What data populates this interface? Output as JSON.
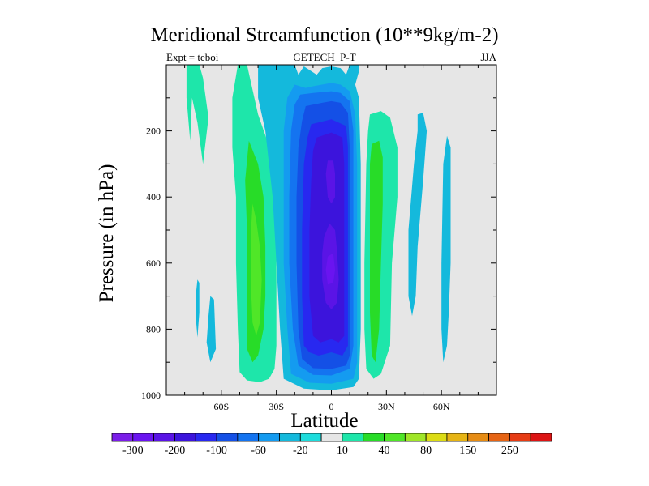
{
  "chart_data": {
    "type": "contour",
    "title": "Meridional Streamfunction (10**9kg/m-2)",
    "subtitle_left": "Expt = teboi",
    "subtitle_center": "GETECH_P-T",
    "subtitle_right": "JJA",
    "xlabel": "Latitude",
    "ylabel": "Pressure (in hPa)",
    "xlim": [
      -90,
      90
    ],
    "ylim": [
      1000,
      0
    ],
    "x_ticks": [
      {
        "value": -60,
        "label": "60S"
      },
      {
        "value": -30,
        "label": "30S"
      },
      {
        "value": 0,
        "label": "0"
      },
      {
        "value": 30,
        "label": "30N"
      },
      {
        "value": 60,
        "label": "60N"
      }
    ],
    "y_ticks": [
      {
        "value": 200,
        "label": "200"
      },
      {
        "value": 400,
        "label": "400"
      },
      {
        "value": 600,
        "label": "600"
      },
      {
        "value": 800,
        "label": "800"
      },
      {
        "value": 1000,
        "label": "1000"
      }
    ],
    "background_fill": "#e6e6e6",
    "colorbar": {
      "colors": [
        "#7a1ee8",
        "#6a14f0",
        "#5a14e6",
        "#3c14dc",
        "#2828f0",
        "#1450e6",
        "#1474f0",
        "#149bf0",
        "#14b9dc",
        "#1edcdc",
        "#e6e6e6",
        "#1ee6aa",
        "#28dc28",
        "#50e628",
        "#a0e628",
        "#dcdc14",
        "#e6b414",
        "#e68c14",
        "#e66414",
        "#e63c14",
        "#dc1414"
      ],
      "labels": [
        {
          "boundary": 1,
          "text": "-300"
        },
        {
          "boundary": 3,
          "text": "-200"
        },
        {
          "boundary": 5,
          "text": "-100"
        },
        {
          "boundary": 7,
          "text": "-60"
        },
        {
          "boundary": 9,
          "text": "-20"
        },
        {
          "boundary": 11,
          "text": "10"
        },
        {
          "boundary": 13,
          "text": "40"
        },
        {
          "boundary": 15,
          "text": "80"
        },
        {
          "boundary": 17,
          "text": "150"
        },
        {
          "boundary": 19,
          "text": "250"
        }
      ]
    },
    "regions": [
      {
        "name": "sh-outer-cell",
        "color": "#1ee6aa",
        "pts": [
          [
            -79,
            0
          ],
          [
            -72,
            0
          ],
          [
            -70,
            40
          ],
          [
            -67,
            160
          ],
          [
            -70,
            300
          ],
          [
            -73,
            175
          ],
          [
            -76,
            100
          ],
          [
            -77,
            230
          ],
          [
            -79,
            100
          ]
        ]
      },
      {
        "name": "sh-ferrel-cell",
        "color": "#1ee6aa",
        "pts": [
          [
            -51,
            0
          ],
          [
            -46,
            0
          ],
          [
            -44,
            50
          ],
          [
            -40,
            150
          ],
          [
            -35,
            230
          ],
          [
            -31,
            380
          ],
          [
            -30,
            520
          ],
          [
            -30,
            700
          ],
          [
            -30,
            850
          ],
          [
            -31,
            920
          ],
          [
            -34,
            950
          ],
          [
            -39,
            960
          ],
          [
            -46,
            955
          ],
          [
            -50,
            930
          ],
          [
            -51,
            800
          ],
          [
            -52,
            600
          ],
          [
            -52,
            400
          ],
          [
            -54,
            250
          ],
          [
            -54,
            100
          ]
        ]
      },
      {
        "name": "sh-ferrel-inner",
        "color": "#28dc28",
        "pts": [
          [
            -45,
            230
          ],
          [
            -40,
            300
          ],
          [
            -37,
            400
          ],
          [
            -36,
            550
          ],
          [
            -36,
            700
          ],
          [
            -37,
            800
          ],
          [
            -40,
            880
          ],
          [
            -43,
            900
          ],
          [
            -46,
            860
          ],
          [
            -46,
            700
          ],
          [
            -46,
            500
          ],
          [
            -47,
            350
          ]
        ]
      },
      {
        "name": "sh-ferrel-core",
        "color": "#50e628",
        "pts": [
          [
            -43,
            420
          ],
          [
            -41,
            470
          ],
          [
            -39,
            550
          ],
          [
            -38,
            650
          ],
          [
            -39,
            780
          ],
          [
            -41,
            820
          ],
          [
            -43,
            780
          ],
          [
            -44,
            650
          ],
          [
            -44,
            520
          ]
        ]
      },
      {
        "name": "sh-patch-small",
        "color": "#14b9dc",
        "pts": [
          [
            -73,
            650
          ],
          [
            -72,
            660
          ],
          [
            -72,
            750
          ],
          [
            -73,
            825
          ],
          [
            -74,
            760
          ],
          [
            -74,
            700
          ]
        ]
      },
      {
        "name": "sh-patch-mid",
        "color": "#14b9dc",
        "pts": [
          [
            -66,
            700
          ],
          [
            -64,
            710
          ],
          [
            -63,
            860
          ],
          [
            -66,
            900
          ],
          [
            -68,
            840
          ],
          [
            -67,
            760
          ]
        ]
      },
      {
        "name": "hadley-cell-l1",
        "color": "#14b9dc",
        "pts": [
          [
            -40,
            0
          ],
          [
            -20,
            0
          ],
          [
            -18,
            30
          ],
          [
            -15,
            5
          ],
          [
            -8,
            30
          ],
          [
            -5,
            10
          ],
          [
            0,
            5
          ],
          [
            5,
            10
          ],
          [
            8,
            30
          ],
          [
            10,
            0
          ],
          [
            15,
            0
          ],
          [
            15,
            20
          ],
          [
            13,
            60
          ],
          [
            15,
            100
          ],
          [
            16,
            300
          ],
          [
            16,
            500
          ],
          [
            16,
            800
          ],
          [
            15,
            950
          ],
          [
            12,
            975
          ],
          [
            0,
            985
          ],
          [
            -15,
            980
          ],
          [
            -26,
            950
          ],
          [
            -28,
            800
          ],
          [
            -30,
            600
          ],
          [
            -32,
            400
          ],
          [
            -36,
            200
          ],
          [
            -40,
            100
          ]
        ]
      },
      {
        "name": "hadley-cell-l2",
        "color": "#149bf0",
        "pts": [
          [
            -20,
            60
          ],
          [
            -14,
            70
          ],
          [
            -10,
            65
          ],
          [
            0,
            55
          ],
          [
            5,
            60
          ],
          [
            10,
            80
          ],
          [
            13,
            150
          ],
          [
            14,
            300
          ],
          [
            14,
            600
          ],
          [
            14,
            900
          ],
          [
            12,
            950
          ],
          [
            0,
            965
          ],
          [
            -12,
            962
          ],
          [
            -22,
            935
          ],
          [
            -24,
            800
          ],
          [
            -26,
            600
          ],
          [
            -26,
            400
          ],
          [
            -26,
            200
          ],
          [
            -24,
            100
          ]
        ]
      },
      {
        "name": "hadley-cell-l3",
        "color": "#1474f0",
        "pts": [
          [
            -17,
            90
          ],
          [
            -10,
            85
          ],
          [
            0,
            80
          ],
          [
            5,
            85
          ],
          [
            10,
            110
          ],
          [
            12,
            200
          ],
          [
            12,
            500
          ],
          [
            12,
            850
          ],
          [
            10,
            920
          ],
          [
            0,
            940
          ],
          [
            -10,
            938
          ],
          [
            -18,
            910
          ],
          [
            -21,
            800
          ],
          [
            -23,
            600
          ],
          [
            -23,
            400
          ],
          [
            -22,
            200
          ],
          [
            -20,
            120
          ]
        ]
      },
      {
        "name": "hadley-cell-l4",
        "color": "#1450e6",
        "pts": [
          [
            -14,
            125
          ],
          [
            -5,
            115
          ],
          [
            0,
            110
          ],
          [
            5,
            115
          ],
          [
            9,
            145
          ],
          [
            10,
            250
          ],
          [
            10,
            600
          ],
          [
            10,
            880
          ],
          [
            8,
            910
          ],
          [
            0,
            920
          ],
          [
            -10,
            918
          ],
          [
            -16,
            890
          ],
          [
            -18,
            800
          ],
          [
            -19,
            600
          ],
          [
            -19,
            400
          ],
          [
            -18,
            250
          ],
          [
            -16,
            170
          ]
        ]
      },
      {
        "name": "hadley-cell-l5",
        "color": "#2828f0",
        "pts": [
          [
            -11,
            180
          ],
          [
            0,
            165
          ],
          [
            8,
            185
          ],
          [
            9,
            250
          ],
          [
            9,
            600
          ],
          [
            9,
            850
          ],
          [
            6,
            880
          ],
          [
            0,
            870
          ],
          [
            -7,
            880
          ],
          [
            -12,
            870
          ],
          [
            -15,
            850
          ],
          [
            -16,
            700
          ],
          [
            -16,
            500
          ],
          [
            -15,
            300
          ],
          [
            -13,
            220
          ]
        ]
      },
      {
        "name": "hadley-cell-l6",
        "color": "#3c14dc",
        "pts": [
          [
            -8,
            220
          ],
          [
            0,
            205
          ],
          [
            6,
            220
          ],
          [
            7,
            300
          ],
          [
            7,
            600
          ],
          [
            7,
            820
          ],
          [
            4,
            840
          ],
          [
            0,
            830
          ],
          [
            -6,
            840
          ],
          [
            -10,
            820
          ],
          [
            -12,
            700
          ],
          [
            -12,
            500
          ],
          [
            -11,
            350
          ],
          [
            -10,
            260
          ]
        ]
      },
      {
        "name": "hadley-core-upper",
        "color": "#5a14e6",
        "pts": [
          [
            -2,
            290
          ],
          [
            1,
            290
          ],
          [
            2,
            330
          ],
          [
            2,
            400
          ],
          [
            0,
            420
          ],
          [
            -2,
            400
          ],
          [
            -3,
            330
          ]
        ]
      },
      {
        "name": "hadley-core-lower",
        "color": "#5a14e6",
        "pts": [
          [
            -4,
            520
          ],
          [
            -1,
            480
          ],
          [
            2,
            500
          ],
          [
            3,
            560
          ],
          [
            4,
            650
          ],
          [
            3,
            720
          ],
          [
            0,
            740
          ],
          [
            -3,
            720
          ],
          [
            -5,
            650
          ],
          [
            -5,
            570
          ]
        ]
      },
      {
        "name": "hadley-core-peak",
        "color": "#6a14f0",
        "pts": [
          [
            -2,
            580
          ],
          [
            1,
            570
          ],
          [
            2,
            620
          ],
          [
            1,
            660
          ],
          [
            -2,
            665
          ],
          [
            -3,
            620
          ]
        ]
      },
      {
        "name": "nh-ferrel-cell",
        "color": "#1ee6aa",
        "pts": [
          [
            21,
            150
          ],
          [
            27,
            140
          ],
          [
            32,
            160
          ],
          [
            36,
            250
          ],
          [
            36,
            400
          ],
          [
            33,
            600
          ],
          [
            32,
            850
          ],
          [
            27,
            935
          ],
          [
            23,
            950
          ],
          [
            19,
            920
          ],
          [
            18,
            800
          ],
          [
            18,
            600
          ],
          [
            19,
            300
          ],
          [
            20,
            200
          ]
        ]
      },
      {
        "name": "nh-ferrel-inner",
        "color": "#28dc28",
        "pts": [
          [
            22,
            240
          ],
          [
            26,
            230
          ],
          [
            28,
            280
          ],
          [
            28,
            420
          ],
          [
            27,
            600
          ],
          [
            26,
            800
          ],
          [
            24,
            900
          ],
          [
            22,
            880
          ],
          [
            21,
            750
          ],
          [
            21,
            500
          ],
          [
            21,
            300
          ]
        ]
      },
      {
        "name": "nh-band-thin",
        "color": "#14b9dc",
        "pts": [
          [
            47,
            150
          ],
          [
            50,
            145
          ],
          [
            52,
            200
          ],
          [
            50,
            350
          ],
          [
            47,
            550
          ],
          [
            46,
            700
          ],
          [
            44,
            760
          ],
          [
            42,
            700
          ],
          [
            42,
            500
          ],
          [
            45,
            300
          ],
          [
            47,
            200
          ]
        ]
      },
      {
        "name": "nh-band-right",
        "color": "#14b9dc",
        "pts": [
          [
            63,
            215
          ],
          [
            65,
            250
          ],
          [
            65,
            400
          ],
          [
            65,
            600
          ],
          [
            64,
            750
          ],
          [
            63,
            850
          ],
          [
            61,
            900
          ],
          [
            60,
            800
          ],
          [
            60,
            600
          ],
          [
            61,
            300
          ]
        ]
      }
    ]
  }
}
